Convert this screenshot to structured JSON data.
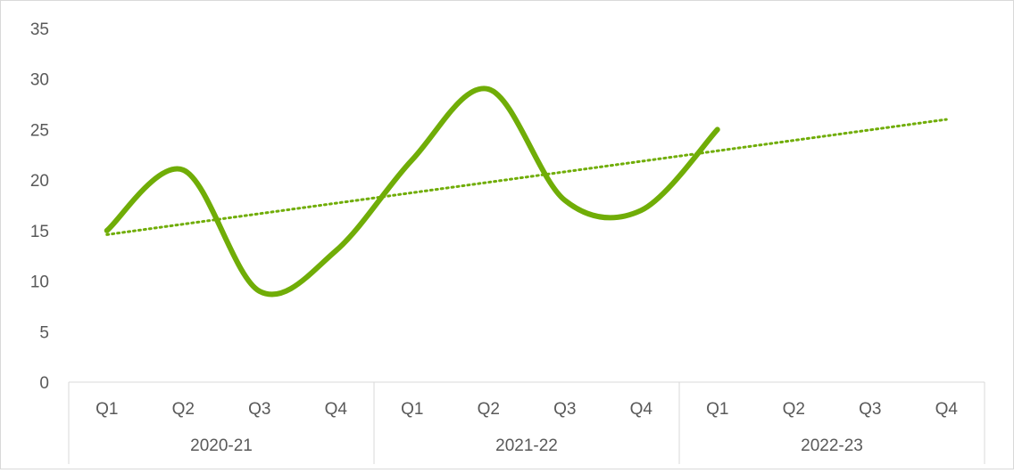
{
  "chart_data": {
    "type": "line",
    "title": "",
    "xlabel": "",
    "ylabel": "",
    "ylim": [
      0,
      35
    ],
    "y_ticks": [
      0,
      5,
      10,
      15,
      20,
      25,
      30,
      35
    ],
    "grid": false,
    "legend": "none",
    "categories": [
      "Q1",
      "Q2",
      "Q3",
      "Q4",
      "Q1",
      "Q2",
      "Q3",
      "Q4",
      "Q1",
      "Q2",
      "Q3",
      "Q4"
    ],
    "groups": [
      {
        "label": "2020-21",
        "span": 4
      },
      {
        "label": "2021-22",
        "span": 4
      },
      {
        "label": "2022-23",
        "span": 4
      }
    ],
    "series": [
      {
        "values": [
          15,
          21,
          9,
          13,
          22,
          29,
          18,
          17,
          25,
          null,
          null,
          null
        ],
        "color": "#70ad07",
        "smooth": true
      }
    ],
    "trendline": {
      "type": "linear",
      "style": "dotted",
      "color": "#70ad07",
      "start": 14.6,
      "end": 26.0
    }
  }
}
